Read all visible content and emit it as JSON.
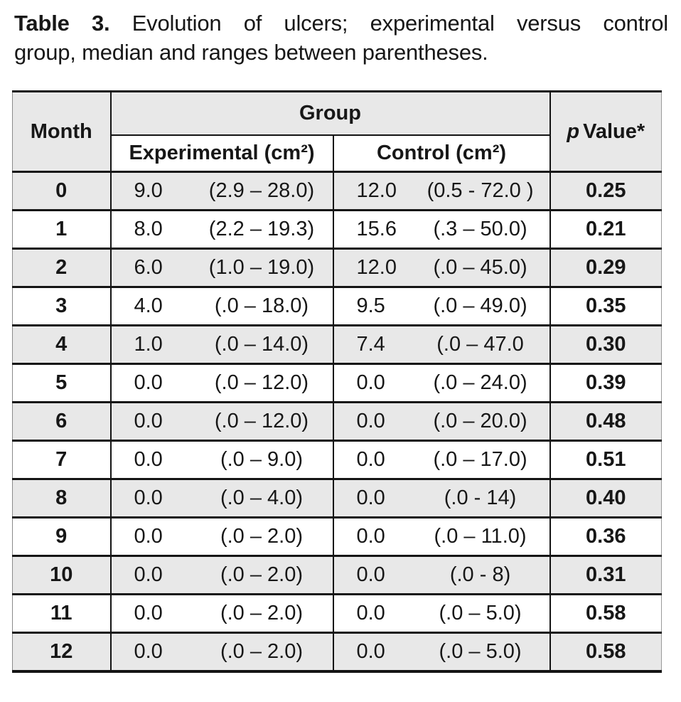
{
  "caption": {
    "bold_prefix": "Table 3.",
    "line1_rest": "Evolution of ulcers; experimental versus control",
    "line2": "group, median and ranges between parentheses."
  },
  "table": {
    "headers": {
      "month": "Month",
      "group": "Group",
      "experimental": "Experimental (cm²)",
      "control": "Control (cm²)",
      "p_italic": "p",
      "p_rest": "Value*"
    },
    "rows": [
      {
        "month": "0",
        "exp_median": "9.0",
        "exp_range": "(2.9 – 28.0)",
        "ctrl_median": "12.0",
        "ctrl_range": "(0.5 -  72.0 )",
        "p_value": "0.25"
      },
      {
        "month": "1",
        "exp_median": "8.0",
        "exp_range": "(2.2 – 19.3)",
        "ctrl_median": "15.6",
        "ctrl_range": "(.3 – 50.0)",
        "p_value": "0.21"
      },
      {
        "month": "2",
        "exp_median": "6.0",
        "exp_range": "(1.0 – 19.0)",
        "ctrl_median": "12.0",
        "ctrl_range": "(.0 – 45.0)",
        "p_value": "0.29"
      },
      {
        "month": "3",
        "exp_median": "4.0",
        "exp_range": "(.0 – 18.0)",
        "ctrl_median": "9.5",
        "ctrl_range": "(.0 – 49.0)",
        "p_value": "0.35"
      },
      {
        "month": "4",
        "exp_median": "1.0",
        "exp_range": "(.0 – 14.0)",
        "ctrl_median": "7.4",
        "ctrl_range": "(.0 – 47.0",
        "p_value": "0.30"
      },
      {
        "month": "5",
        "exp_median": "0.0",
        "exp_range": "(.0 – 12.0)",
        "ctrl_median": "0.0",
        "ctrl_range": "(.0 – 24.0)",
        "p_value": "0.39"
      },
      {
        "month": "6",
        "exp_median": "0.0",
        "exp_range": "(.0 – 12.0)",
        "ctrl_median": "0.0",
        "ctrl_range": "(.0 – 20.0)",
        "p_value": "0.48"
      },
      {
        "month": "7",
        "exp_median": "0.0",
        "exp_range": "(.0 – 9.0)",
        "ctrl_median": "0.0",
        "ctrl_range": "(.0 – 17.0)",
        "p_value": "0.51"
      },
      {
        "month": "8",
        "exp_median": "0.0",
        "exp_range": "(.0 – 4.0)",
        "ctrl_median": "0.0",
        "ctrl_range": "(.0 - 14)",
        "p_value": "0.40"
      },
      {
        "month": "9",
        "exp_median": "0.0",
        "exp_range": "(.0 – 2.0)",
        "ctrl_median": "0.0",
        "ctrl_range": "(.0 – 11.0)",
        "p_value": "0.36"
      },
      {
        "month": "10",
        "exp_median": "0.0",
        "exp_range": "(.0 – 2.0)",
        "ctrl_median": "0.0",
        "ctrl_range": "(.0 - 8)",
        "p_value": "0.31"
      },
      {
        "month": "11",
        "exp_median": "0.0",
        "exp_range": "(.0 – 2.0)",
        "ctrl_median": "0.0",
        "ctrl_range": "(.0 – 5.0)",
        "p_value": "0.58"
      },
      {
        "month": "12",
        "exp_median": "0.0",
        "exp_range": "(.0 – 2.0)",
        "ctrl_median": "0.0",
        "ctrl_range": "(.0 – 5.0)",
        "p_value": "0.58"
      }
    ]
  },
  "colors": {
    "row_shade": "#e8e8e8",
    "border": "#141414",
    "text": "#171717"
  }
}
